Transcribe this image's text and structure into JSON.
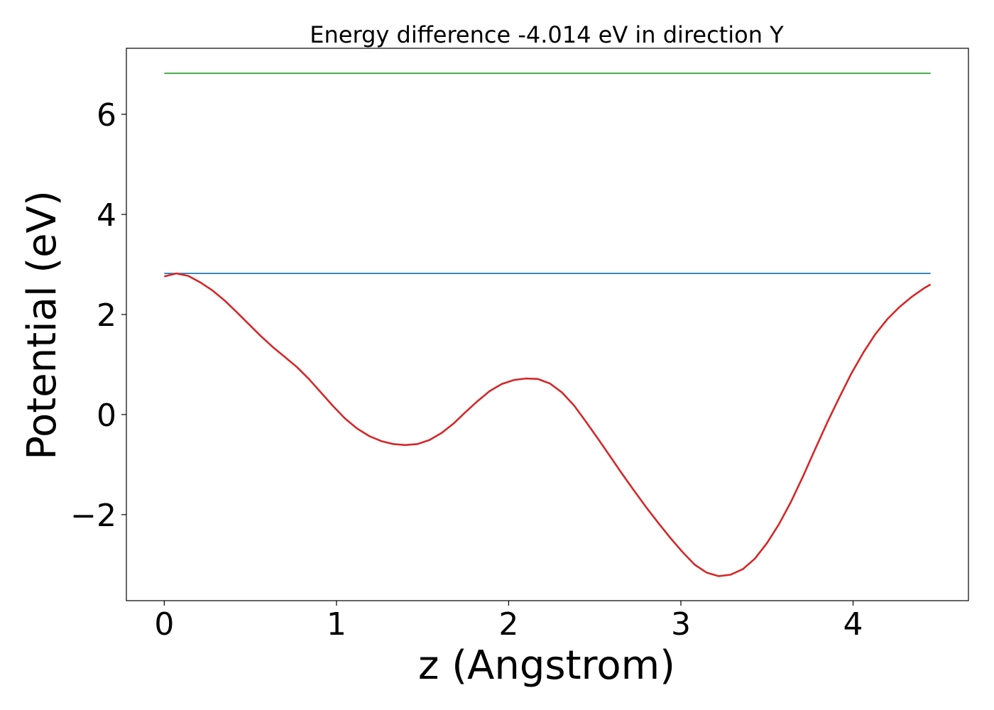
{
  "chart_data": {
    "type": "line",
    "title": "Energy difference -4.014 eV in direction Y",
    "xlabel": "z (Angstrom)",
    "ylabel": "Potential (eV)",
    "xlim": [
      -0.22,
      4.67
    ],
    "ylim": [
      -3.72,
      7.32
    ],
    "xticks": [
      0,
      1,
      2,
      3,
      4
    ],
    "xtick_labels": [
      "0",
      "1",
      "2",
      "3",
      "4"
    ],
    "yticks": [
      -2,
      0,
      2,
      4,
      6
    ],
    "ytick_labels": [
      "−2",
      "0",
      "2",
      "4",
      "6"
    ],
    "grid": false,
    "series": [
      {
        "color": "#d62728",
        "style": "potential",
        "x": [
          0.0,
          0.07,
          0.14,
          0.21,
          0.28,
          0.35,
          0.42,
          0.49,
          0.56,
          0.63,
          0.7,
          0.77,
          0.84,
          0.91,
          0.98,
          1.05,
          1.12,
          1.19,
          1.26,
          1.33,
          1.4,
          1.47,
          1.54,
          1.61,
          1.68,
          1.75,
          1.82,
          1.89,
          1.96,
          2.03,
          2.1,
          2.17,
          2.24,
          2.31,
          2.38,
          2.45,
          2.52,
          2.59,
          2.66,
          2.73,
          2.8,
          2.87,
          2.94,
          3.01,
          3.08,
          3.15,
          3.22,
          3.29,
          3.36,
          3.43,
          3.5,
          3.57,
          3.64,
          3.71,
          3.78,
          3.85,
          3.92,
          3.99,
          4.06,
          4.13,
          4.2,
          4.27,
          4.34,
          4.41,
          4.45
        ],
        "y": [
          2.76,
          2.82,
          2.77,
          2.64,
          2.48,
          2.28,
          2.05,
          1.81,
          1.57,
          1.35,
          1.15,
          0.95,
          0.71,
          0.44,
          0.17,
          -0.08,
          -0.28,
          -0.43,
          -0.53,
          -0.59,
          -0.61,
          -0.59,
          -0.51,
          -0.37,
          -0.18,
          0.05,
          0.27,
          0.47,
          0.61,
          0.69,
          0.72,
          0.71,
          0.62,
          0.44,
          0.18,
          -0.15,
          -0.49,
          -0.84,
          -1.19,
          -1.53,
          -1.86,
          -2.17,
          -2.47,
          -2.75,
          -3.0,
          -3.16,
          -3.23,
          -3.2,
          -3.09,
          -2.88,
          -2.57,
          -2.19,
          -1.74,
          -1.23,
          -0.69,
          -0.16,
          0.34,
          0.82,
          1.24,
          1.61,
          1.91,
          2.15,
          2.35,
          2.52,
          2.6
        ]
      },
      {
        "color": "#1f77b4",
        "style": "flat",
        "x": [
          0.0,
          4.45
        ],
        "y": [
          2.82,
          2.82
        ]
      },
      {
        "color": "#2ca02c",
        "style": "flat",
        "x": [
          0.0,
          4.45
        ],
        "y": [
          6.82,
          6.82
        ]
      }
    ]
  }
}
